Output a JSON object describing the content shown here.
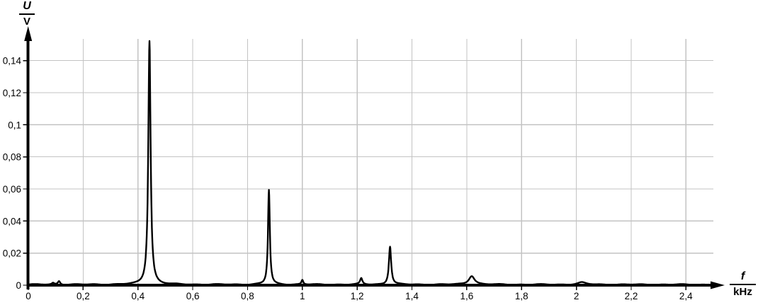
{
  "chart": {
    "ylabel": {
      "numerator": "U",
      "denominator": "V"
    },
    "xlabel": {
      "numerator": "f",
      "denominator": "kHz"
    }
  },
  "chart_data": {
    "type": "line",
    "title": "",
    "description": "Frequency spectrum: voltage amplitude U in V versus frequency f in kHz",
    "xlabel": "f / kHz",
    "ylabel": "U / V",
    "xlim": [
      0,
      2.5
    ],
    "ylim": [
      0,
      0.1535
    ],
    "grid": true,
    "legend": false,
    "x_tick_values": [
      0,
      0.2,
      0.4,
      0.6,
      0.8,
      1,
      1.2,
      1.4,
      1.6,
      1.8,
      2,
      2.2,
      2.4
    ],
    "x_tick_labels": [
      "0",
      "0,2",
      "0,4",
      "0,6",
      "0,8",
      "1",
      "1,2",
      "1,4",
      "1,6",
      "1,8",
      "2",
      "2,2",
      "2,4"
    ],
    "y_tick_values": [
      0,
      0.02,
      0.04,
      0.06,
      0.08,
      0.1,
      0.12,
      0.14
    ],
    "y_tick_labels": [
      "0",
      "0,02",
      "0,04",
      "0,06",
      "0,08",
      "0,1",
      "0,12",
      "0,14"
    ],
    "line_color": "#000000",
    "grid_color": "#c3c3c3",
    "axis_color": "#000000",
    "noise_floor": 0.0007,
    "peaks": [
      {
        "f": 0.09,
        "U": 0.001,
        "width": 0.005
      },
      {
        "f": 0.112,
        "U": 0.0022,
        "width": 0.005
      },
      {
        "f": 0.442,
        "U": 0.152,
        "width": 0.005
      },
      {
        "f": 0.878,
        "U": 0.059,
        "width": 0.004
      },
      {
        "f": 1.0,
        "U": 0.0028,
        "width": 0.004
      },
      {
        "f": 1.215,
        "U": 0.0038,
        "width": 0.005
      },
      {
        "f": 1.32,
        "U": 0.0238,
        "width": 0.005
      },
      {
        "f": 1.618,
        "U": 0.0055,
        "width": 0.013
      },
      {
        "f": 2.02,
        "U": 0.0013,
        "width": 0.018
      }
    ]
  }
}
